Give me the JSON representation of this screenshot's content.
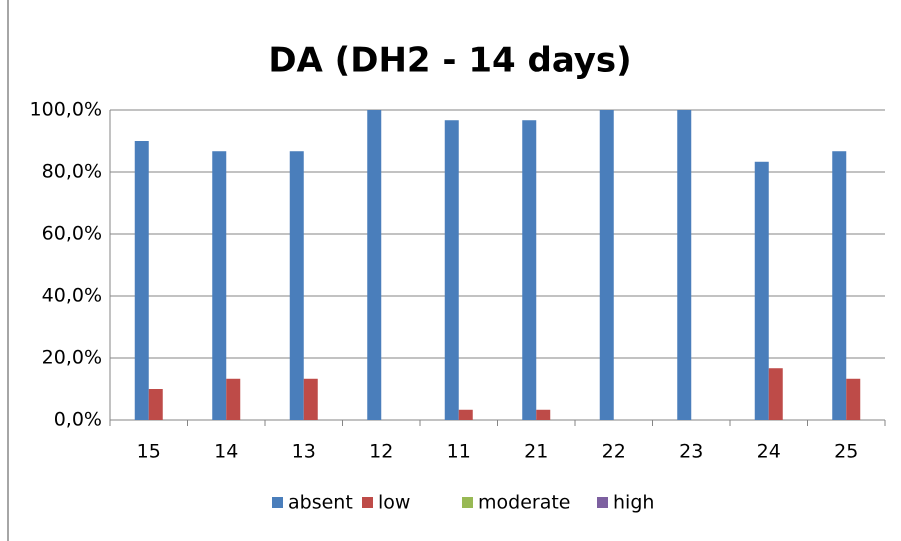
{
  "chart_data": {
    "type": "bar",
    "title": "DA (DH2 - 14 days)",
    "categories": [
      "15",
      "14",
      "13",
      "12",
      "11",
      "21",
      "22",
      "23",
      "24",
      "25"
    ],
    "series": [
      {
        "name": "absent",
        "color": "#4a7ebb",
        "values": [
          90,
          86.7,
          86.7,
          100,
          96.7,
          96.7,
          100,
          100,
          83.3,
          86.7
        ]
      },
      {
        "name": "low",
        "color": "#be4b48",
        "values": [
          10,
          13.3,
          13.3,
          0,
          3.3,
          3.3,
          0,
          0,
          16.7,
          13.3
        ]
      },
      {
        "name": "moderate",
        "color": "#98b954",
        "values": [
          0,
          0,
          0,
          0,
          0,
          0,
          0,
          0,
          0,
          0
        ]
      },
      {
        "name": "high",
        "color": "#7d60a0",
        "values": [
          0,
          0,
          0,
          0,
          0,
          0,
          0,
          0,
          0,
          0
        ]
      }
    ],
    "ylim": [
      0,
      100
    ],
    "yticks": [
      {
        "value": 0,
        "label": "0,0%"
      },
      {
        "value": 20,
        "label": "20,0%"
      },
      {
        "value": 40,
        "label": "40,0%"
      },
      {
        "value": 60,
        "label": "60,0%"
      },
      {
        "value": 80,
        "label": "80,0%"
      },
      {
        "value": 100,
        "label": "100,0%"
      }
    ],
    "grid": true,
    "legend": "bottom"
  }
}
